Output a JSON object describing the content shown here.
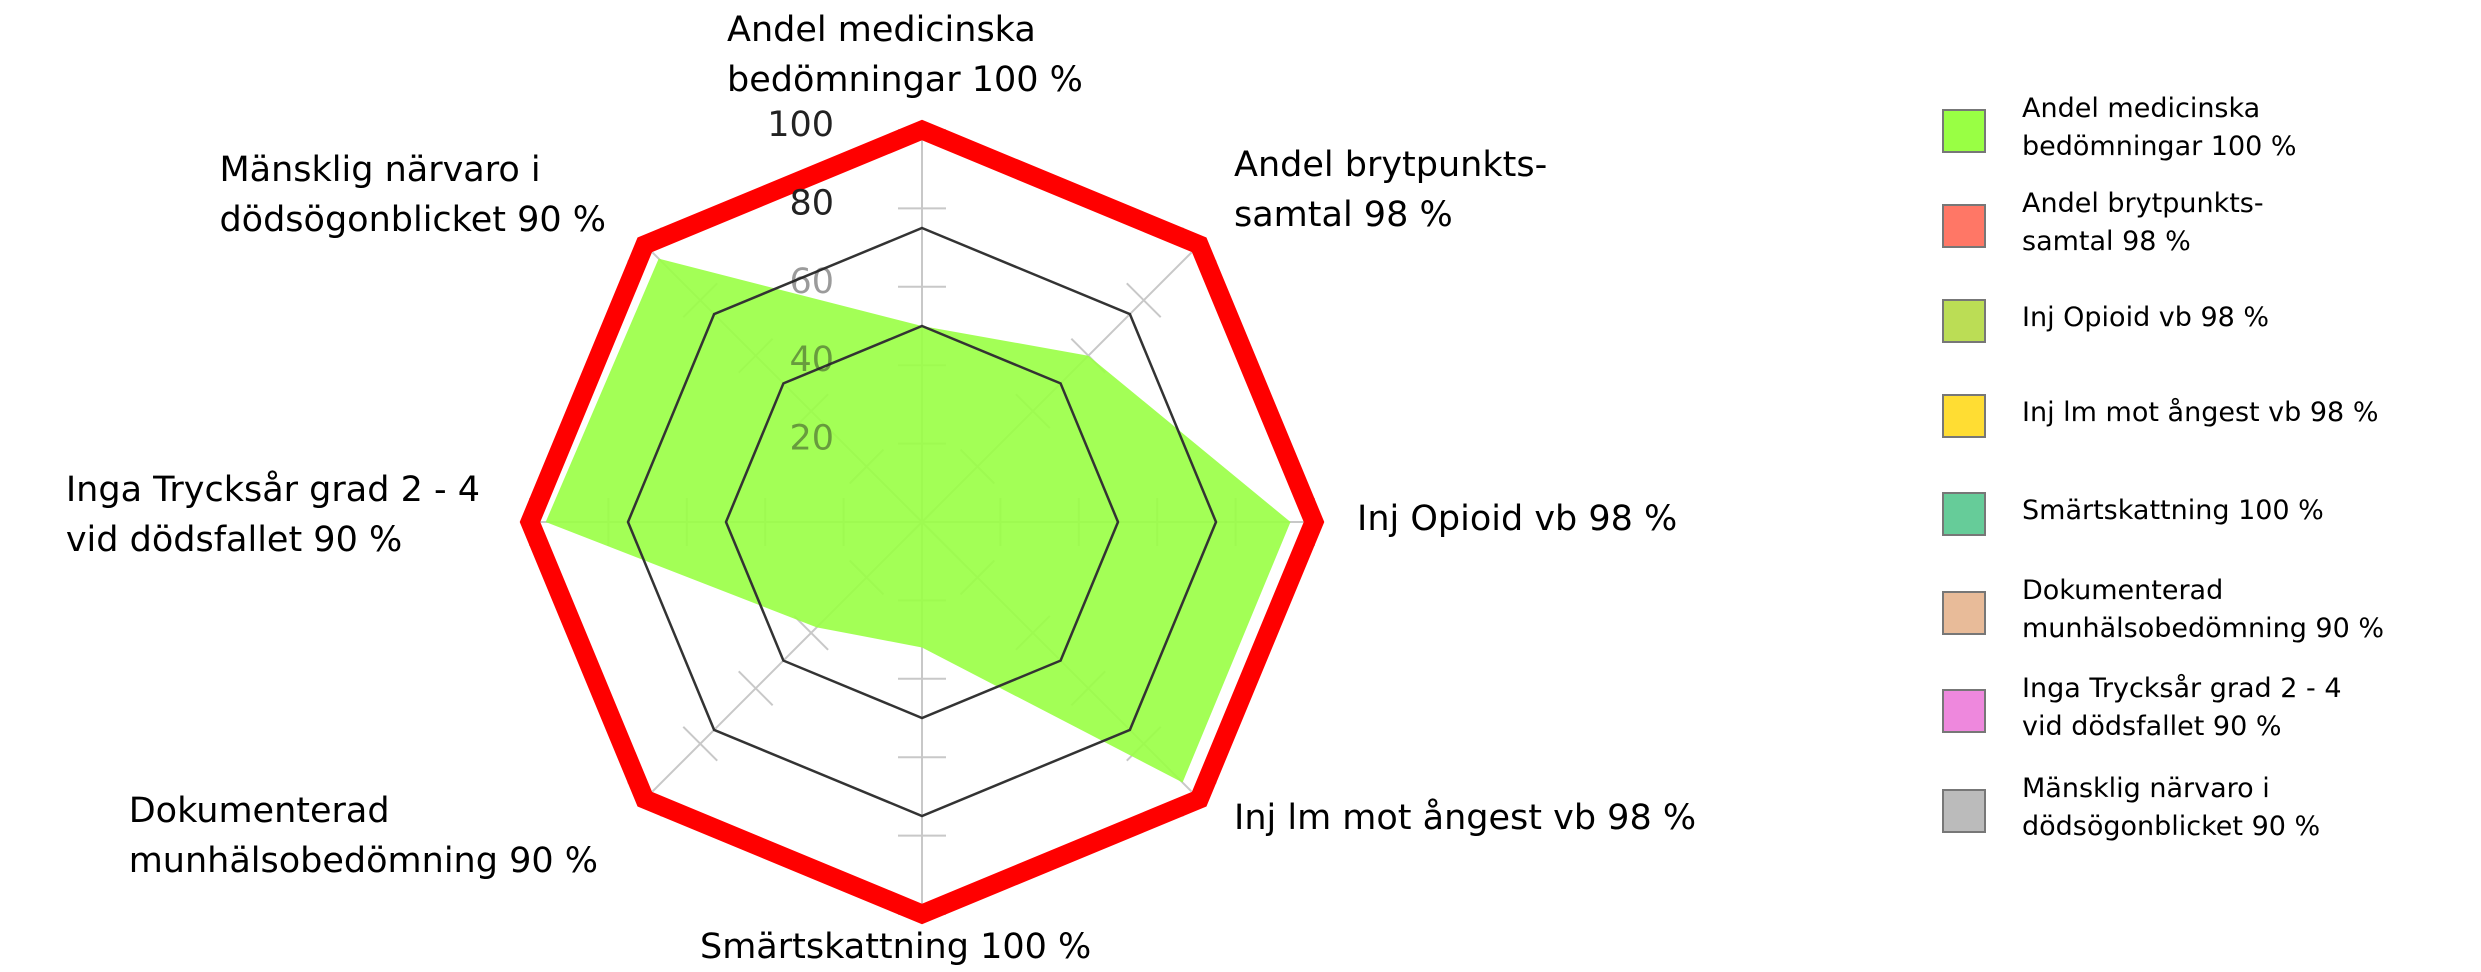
{
  "chart_data": {
    "type": "radar",
    "categories": [
      "Andel medicinska\nbedömningar 100 %",
      "Andel brytpunkts-\nsamtal 98 %",
      "Inj Opioid vb 98 %",
      "Inj lm mot ångest vb 98 %",
      "Smärtskattning 100 %",
      "Dokumenterad\nmunhälsobedömning 90 %",
      "Inga Trycksår grad 2 - 4\nvid dödsfallet 90 %",
      "Mänsklig närvaro i\ndödsögonblicket 90 %"
    ],
    "category_colors": [
      "#99ff44",
      "#ff7766",
      "#bbdd55",
      "#ffdd33",
      "#66cc99",
      "#e8bb99",
      "#ee88dd",
      "#bbbbbb"
    ],
    "series": [
      {
        "color": "#99ff44",
        "values": [
          50,
          60,
          94,
          94,
          32,
          38,
          96,
          95
        ]
      }
    ],
    "rings": [
      {
        "value": 100,
        "color": "#ff0000"
      },
      {
        "value": 75,
        "color": "#333333"
      },
      {
        "value": 50,
        "color": "#333333"
      }
    ],
    "ylim": [
      0,
      100
    ],
    "yticks": [
      20,
      40,
      60,
      80,
      100
    ]
  }
}
